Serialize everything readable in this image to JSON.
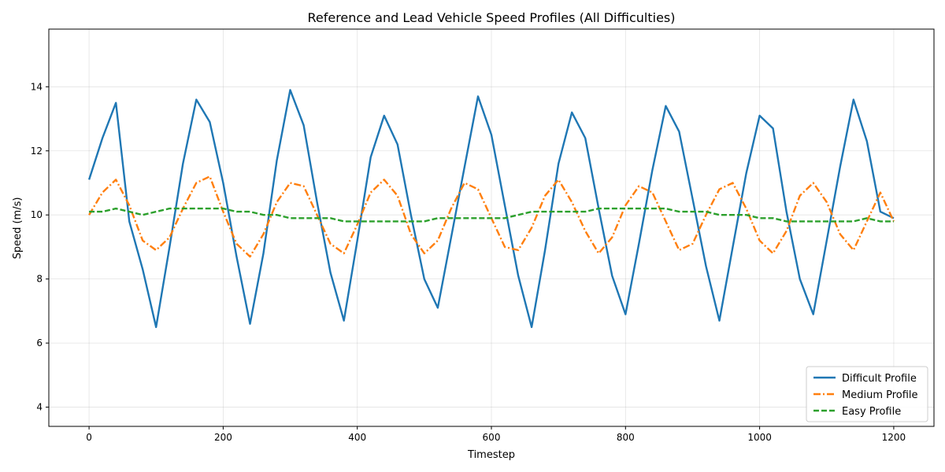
{
  "chart_data": {
    "type": "line",
    "title": "Reference and Lead Vehicle Speed Profiles (All Difficulties)",
    "xlabel": "Timestep",
    "ylabel": "Speed (m/s)",
    "xlim": [
      -60,
      1260
    ],
    "ylim": [
      3.4,
      15.8
    ],
    "xticks": [
      0,
      200,
      400,
      600,
      800,
      1000,
      1200
    ],
    "yticks": [
      4,
      6,
      8,
      10,
      12,
      14
    ],
    "grid": true,
    "legend_position": "lower-right",
    "x_step": 20,
    "series": [
      {
        "name": "Difficult Profile",
        "color": "#1f77b4",
        "style": "solid",
        "values": [
          11.1,
          12.4,
          13.5,
          9.8,
          8.3,
          6.5,
          9.0,
          11.6,
          13.6,
          12.9,
          11.0,
          8.7,
          6.6,
          8.8,
          11.7,
          13.9,
          12.8,
          10.4,
          8.2,
          6.7,
          9.2,
          11.8,
          13.1,
          12.2,
          10.0,
          8.0,
          7.1,
          9.3,
          11.5,
          13.7,
          12.5,
          10.3,
          8.1,
          6.5,
          8.9,
          11.6,
          13.2,
          12.4,
          10.2,
          8.1,
          6.9,
          9.1,
          11.4,
          13.4,
          12.6,
          10.5,
          8.4,
          6.7,
          9.0,
          11.3,
          13.1,
          12.7,
          10.1,
          8.0,
          6.9,
          9.2,
          11.5,
          13.6,
          12.3,
          10.1,
          9.9
        ]
      },
      {
        "name": "Medium Profile",
        "color": "#ff7f0e",
        "style": "dashdot",
        "values": [
          10.0,
          10.7,
          11.1,
          10.3,
          9.2,
          8.9,
          9.3,
          10.2,
          11.0,
          11.2,
          10.1,
          9.1,
          8.7,
          9.4,
          10.4,
          11.0,
          10.9,
          10.0,
          9.1,
          8.8,
          9.7,
          10.7,
          11.1,
          10.6,
          9.4,
          8.8,
          9.2,
          10.2,
          11.0,
          10.8,
          9.9,
          9.0,
          8.9,
          9.6,
          10.6,
          11.1,
          10.4,
          9.5,
          8.8,
          9.3,
          10.3,
          10.9,
          10.7,
          9.8,
          8.9,
          9.1,
          10.0,
          10.8,
          11.0,
          10.2,
          9.2,
          8.8,
          9.5,
          10.6,
          11.0,
          10.4,
          9.4,
          8.9,
          9.8,
          10.7,
          9.8
        ]
      },
      {
        "name": "Easy Profile",
        "color": "#2ca02c",
        "style": "dashed",
        "values": [
          10.1,
          10.1,
          10.2,
          10.1,
          10.0,
          10.1,
          10.2,
          10.2,
          10.2,
          10.2,
          10.2,
          10.1,
          10.1,
          10.0,
          10.0,
          9.9,
          9.9,
          9.9,
          9.9,
          9.8,
          9.8,
          9.8,
          9.8,
          9.8,
          9.8,
          9.8,
          9.9,
          9.9,
          9.9,
          9.9,
          9.9,
          9.9,
          10.0,
          10.1,
          10.1,
          10.1,
          10.1,
          10.1,
          10.2,
          10.2,
          10.2,
          10.2,
          10.2,
          10.2,
          10.1,
          10.1,
          10.1,
          10.0,
          10.0,
          10.0,
          9.9,
          9.9,
          9.8,
          9.8,
          9.8,
          9.8,
          9.8,
          9.8,
          9.9,
          9.8,
          9.8
        ]
      }
    ]
  }
}
